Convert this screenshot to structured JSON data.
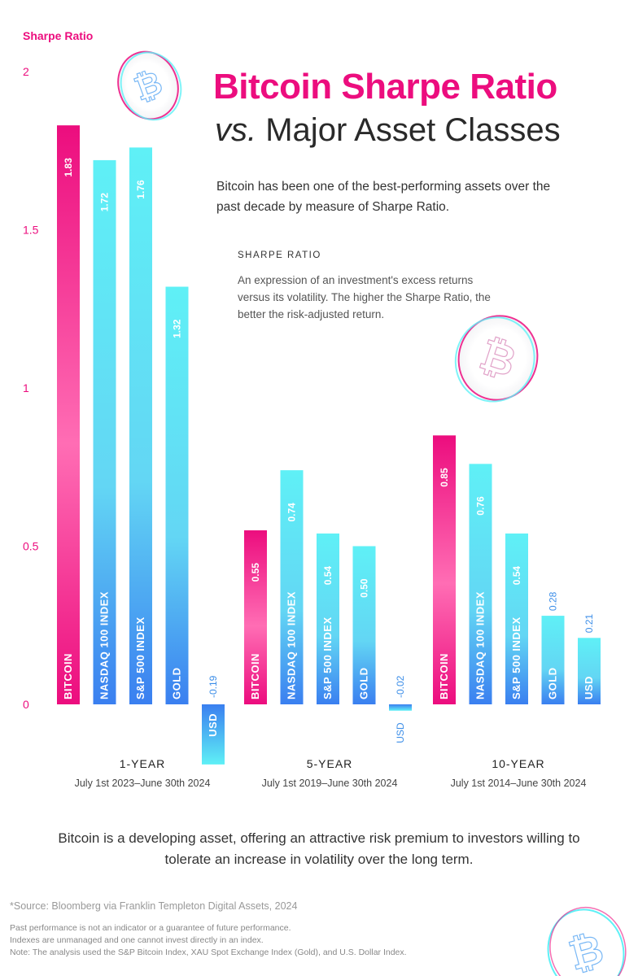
{
  "header": {
    "title_line1": "Bitcoin Sharpe Ratio",
    "title_vs": "vs.",
    "title_line2_rest": " Major Asset Classes",
    "subtitle": "Bitcoin has been one of the best-performing assets over the past decade by measure of Sharpe Ratio."
  },
  "definition": {
    "heading": "SHARPE RATIO",
    "body": "An expression of an investment's excess returns versus its volatility. The higher the Sharpe Ratio, the better the risk-adjusted return."
  },
  "footer": {
    "main": "Bitcoin is a developing asset, offering an attractive risk premium to investors willing to tolerate an increase in volatility over the long term.",
    "source": "*Source: Bloomberg via Franklin Templeton Digital Assets, 2024",
    "fine_lines": [
      "Past performance is not an indicator or a guarantee of future performance.",
      "Indexes are unmanaged and one cannot invest directly in an index.",
      "Note: The analysis used the S&P Bitcoin Index, XAU Spot Exchange Index (Gold), and U.S. Dollar Index."
    ]
  },
  "colors": {
    "accent": "#ec0d7e",
    "bitcoin_top": "#ec0d7e",
    "bitcoin_bottom": "#ff5aa8",
    "other_top": "#5ff0f6",
    "other_bottom": "#3a7ff0"
  },
  "icons": [
    "bitcoin-coin-icon"
  ],
  "chart_data": {
    "type": "bar",
    "ylabel": "Sharpe Ratio",
    "ylim": [
      0,
      2
    ],
    "yticks": [
      "0",
      "0.5",
      "1",
      "1.5",
      "2"
    ],
    "grid": false,
    "groups": [
      {
        "label": "1-YEAR",
        "dates": "July 1st 2023–June 30th 2024",
        "bars": [
          {
            "name": "BITCOIN",
            "value": 1.83,
            "label": "1.83"
          },
          {
            "name": "NASDAQ 100 INDEX",
            "value": 1.72,
            "label": "1.72"
          },
          {
            "name": "S&P 500 INDEX",
            "value": 1.76,
            "label": "1.76"
          },
          {
            "name": "GOLD",
            "value": 1.32,
            "label": "1.32"
          },
          {
            "name": "USD",
            "value": -0.19,
            "label": "-0.19"
          }
        ]
      },
      {
        "label": "5-YEAR",
        "dates": "July 1st 2019–June 30th 2024",
        "bars": [
          {
            "name": "BITCOIN",
            "value": 0.55,
            "label": "0.55"
          },
          {
            "name": "NASDAQ 100 INDEX",
            "value": 0.74,
            "label": "0.74"
          },
          {
            "name": "S&P 500 INDEX",
            "value": 0.54,
            "label": "0.54"
          },
          {
            "name": "GOLD",
            "value": 0.5,
            "label": "0.50"
          },
          {
            "name": "USD",
            "value": -0.02,
            "label": "-0.02"
          }
        ]
      },
      {
        "label": "10-YEAR",
        "dates": "July 1st 2014–June 30th 2024",
        "bars": [
          {
            "name": "BITCOIN",
            "value": 0.85,
            "label": "0.85"
          },
          {
            "name": "NASDAQ 100 INDEX",
            "value": 0.76,
            "label": "0.76"
          },
          {
            "name": "S&P 500 INDEX",
            "value": 0.54,
            "label": "0.54"
          },
          {
            "name": "GOLD",
            "value": 0.28,
            "label": "0.28"
          },
          {
            "name": "USD",
            "value": 0.21,
            "label": "0.21"
          }
        ]
      }
    ]
  }
}
